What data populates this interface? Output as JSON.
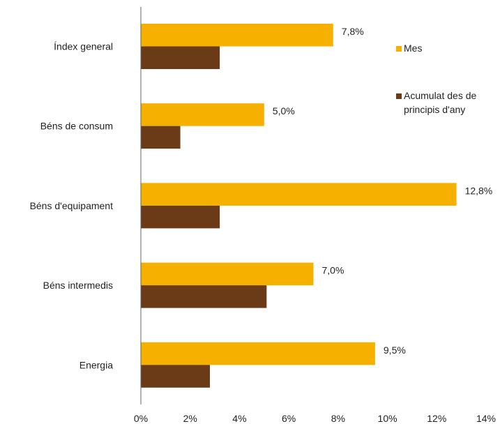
{
  "chart_data": {
    "type": "bar",
    "orientation": "horizontal",
    "title": "",
    "xlabel": "",
    "ylabel": "",
    "categories": [
      "Índex general",
      "Béns de consum",
      "Béns d'equipament",
      "Béns intermedis",
      "Energia"
    ],
    "series": [
      {
        "name": "Mes",
        "color": "#F5B000",
        "values": [
          7.8,
          5.0,
          12.8,
          7.0,
          9.5
        ],
        "data_labels": [
          "7,8%",
          "5,0%",
          "12,8%",
          "7,0%",
          "9,5%"
        ]
      },
      {
        "name": "Acumulat des de principis d'any",
        "name_lines": [
          "Acumulat des de",
          "principis d'any"
        ],
        "color": "#6B3A17",
        "values": [
          3.2,
          1.6,
          3.2,
          5.1,
          2.8
        ]
      }
    ],
    "xlim": [
      0,
      14
    ],
    "x_ticks": [
      0,
      2,
      4,
      6,
      8,
      10,
      12,
      14
    ],
    "x_tick_labels": [
      "0%",
      "2%",
      "4%",
      "6%",
      "8%",
      "10%",
      "12%",
      "14%"
    ],
    "grid": false,
    "legend_position": "right"
  }
}
